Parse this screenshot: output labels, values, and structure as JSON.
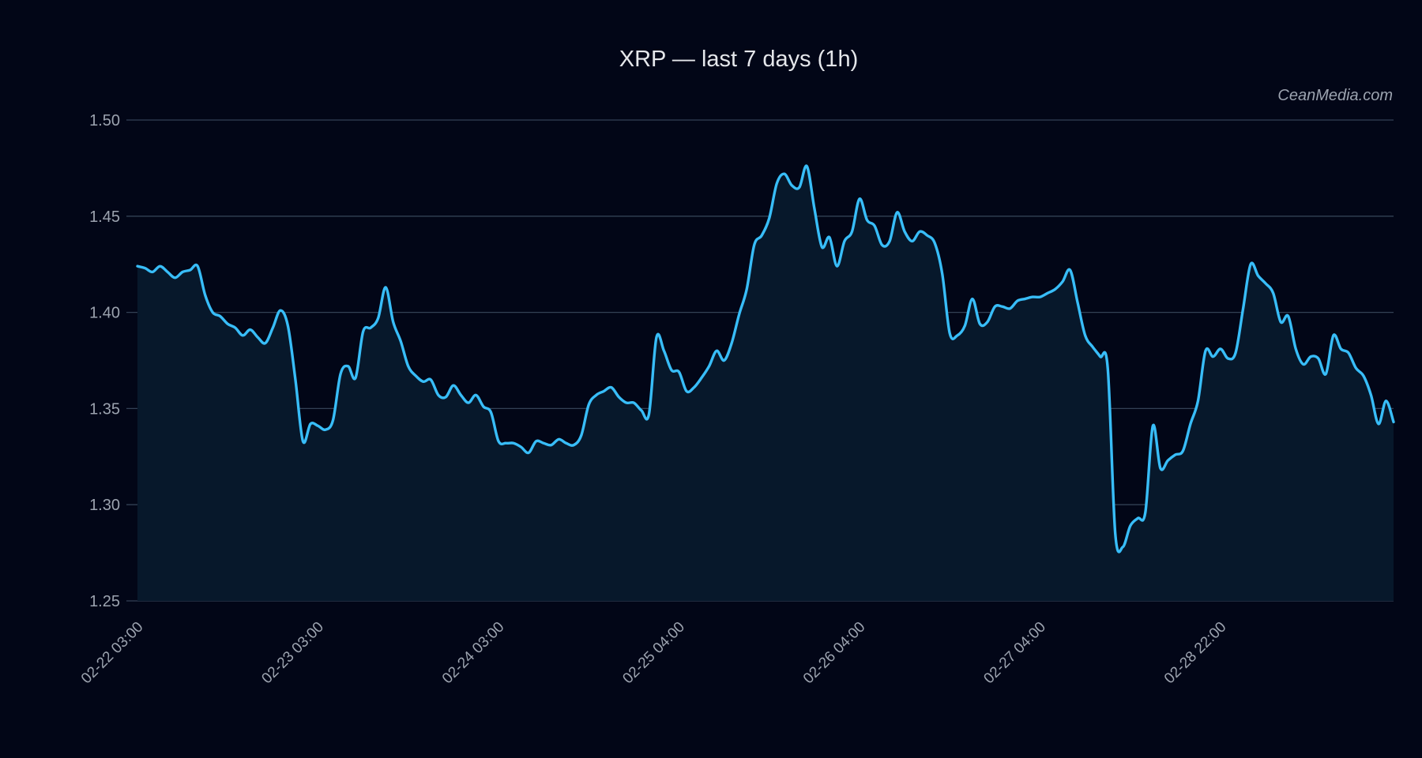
{
  "chart_data": {
    "type": "line",
    "title": "XRP — last 7 days (1h)",
    "watermark": "CeanMedia.com",
    "xlabel": "",
    "ylabel": "",
    "ylim": [
      1.25,
      1.5
    ],
    "y_ticks": [
      "1.50",
      "1.45",
      "1.40",
      "1.35",
      "1.30",
      "1.25"
    ],
    "x_ticks": [
      "02-22 03:00",
      "02-23 03:00",
      "02-24 03:00",
      "02-25 04:00",
      "02-26 04:00",
      "02-27 04:00",
      "02-28 22:00"
    ],
    "grid": true,
    "line_color": "#38bdf8",
    "fill_color": "#07182b",
    "background_color": "#020617",
    "series": [
      {
        "values": [
          1.424,
          1.423,
          1.421,
          1.424,
          1.421,
          1.418,
          1.421,
          1.422,
          1.424,
          1.409,
          1.4,
          1.398,
          1.394,
          1.392,
          1.388,
          1.391,
          1.387,
          1.384,
          1.392,
          1.401,
          1.393,
          1.365,
          1.333,
          1.342,
          1.341,
          1.339,
          1.344,
          1.368,
          1.372,
          1.366,
          1.39,
          1.392,
          1.397,
          1.413,
          1.395,
          1.385,
          1.372,
          1.367,
          1.364,
          1.365,
          1.357,
          1.356,
          1.362,
          1.357,
          1.353,
          1.357,
          1.351,
          1.348,
          1.333,
          1.332,
          1.332,
          1.33,
          1.327,
          1.333,
          1.332,
          1.331,
          1.334,
          1.332,
          1.331,
          1.336,
          1.352,
          1.357,
          1.359,
          1.361,
          1.356,
          1.353,
          1.353,
          1.349,
          1.347,
          1.387,
          1.38,
          1.37,
          1.369,
          1.359,
          1.361,
          1.366,
          1.372,
          1.38,
          1.375,
          1.384,
          1.399,
          1.412,
          1.435,
          1.44,
          1.449,
          1.467,
          1.472,
          1.466,
          1.465,
          1.476,
          1.454,
          1.434,
          1.439,
          1.424,
          1.437,
          1.442,
          1.459,
          1.448,
          1.445,
          1.435,
          1.437,
          1.452,
          1.442,
          1.437,
          1.442,
          1.44,
          1.436,
          1.42,
          1.389,
          1.388,
          1.393,
          1.407,
          1.394,
          1.395,
          1.403,
          1.403,
          1.402,
          1.406,
          1.407,
          1.408,
          1.408,
          1.41,
          1.412,
          1.416,
          1.422,
          1.405,
          1.388,
          1.382,
          1.377,
          1.371,
          1.285,
          1.278,
          1.289,
          1.293,
          1.296,
          1.341,
          1.319,
          1.323,
          1.326,
          1.328,
          1.342,
          1.354,
          1.38,
          1.377,
          1.381,
          1.376,
          1.379,
          1.402,
          1.425,
          1.419,
          1.415,
          1.41,
          1.395,
          1.398,
          1.381,
          1.373,
          1.377,
          1.376,
          1.368,
          1.388,
          1.381,
          1.379,
          1.371,
          1.367,
          1.357,
          1.342,
          1.354,
          1.343
        ]
      }
    ]
  }
}
